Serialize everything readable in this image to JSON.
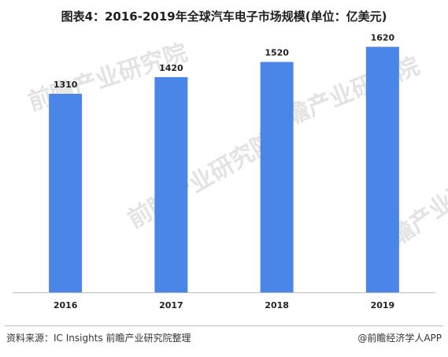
{
  "chart_data": {
    "type": "bar",
    "title": "图表4：2016-2019年全球汽车电子市场规模(单位：亿美元)",
    "categories": [
      "2016",
      "2017",
      "2018",
      "2019"
    ],
    "values": [
      1310,
      1420,
      1520,
      1620
    ],
    "value_labels": [
      "1310",
      "1420",
      "1520",
      "1620"
    ],
    "xlabel": "",
    "ylabel": "",
    "ylim": [
      0,
      1700
    ],
    "grid": false,
    "legend": "none",
    "bar_color": "#4a86e8",
    "axis_color": "#bfbfbf"
  },
  "footer": {
    "source": "资料来源：IC Insights 前瞻产业研究院整理",
    "brand": "@前瞻经济学人APP"
  },
  "watermark": {
    "text": "前瞻产业研究院"
  }
}
